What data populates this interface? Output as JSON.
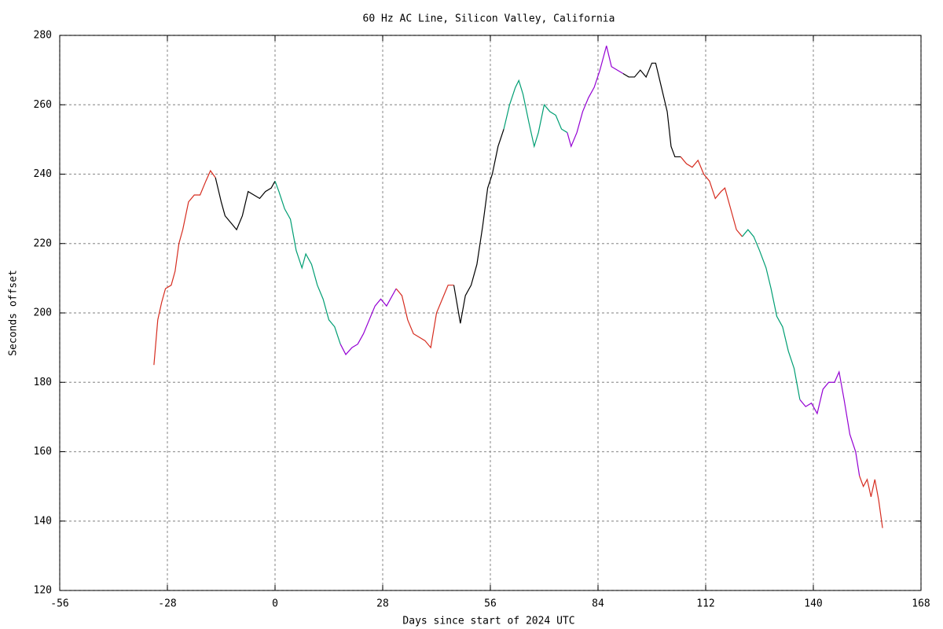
{
  "chart_data": {
    "type": "line",
    "title": "60 Hz AC Line, Silicon Valley, California",
    "xlabel": "Days since start of 2024 UTC",
    "ylabel": "Seconds offset",
    "xlim": [
      -56,
      168
    ],
    "xticks": [
      -56,
      -28,
      0,
      28,
      56,
      84,
      112,
      140,
      168
    ],
    "ylim": [
      120,
      280
    ],
    "yticks": [
      120,
      140,
      160,
      180,
      200,
      220,
      240,
      260,
      280
    ],
    "grid": true,
    "series": [
      {
        "color": "#d62d20",
        "x": [
          -31.5,
          -30.5,
          -29.5,
          -28.5,
          -27,
          -26,
          -25,
          -24,
          -22.5,
          -21,
          -19.5,
          -18,
          -16.8,
          -15.5
        ],
        "values": [
          185,
          198,
          203,
          207,
          208,
          212,
          220,
          224,
          232,
          234,
          234,
          238,
          241,
          239
        ]
      },
      {
        "color": "#000000",
        "x": [
          -15.5,
          -14,
          -13,
          -11.5,
          -10,
          -8.5,
          -7,
          -5.5,
          -4,
          -2.5,
          -1,
          0
        ],
        "values": [
          239,
          232,
          228,
          226,
          224,
          228,
          235,
          234,
          233,
          235,
          236,
          238
        ]
      },
      {
        "color": "#009e73",
        "x": [
          0,
          1,
          2.5,
          4,
          5.5,
          7,
          8,
          9.5,
          11,
          12.5,
          14,
          15.5,
          17
        ],
        "values": [
          238,
          235,
          230,
          227,
          218,
          213,
          217,
          214,
          208,
          204,
          198,
          196,
          191
        ]
      },
      {
        "color": "#9400d3",
        "x": [
          17,
          18.4,
          20,
          21.5,
          23,
          24.5,
          26,
          27.5,
          29,
          30,
          31.5
        ],
        "values": [
          191,
          188,
          190,
          191,
          194,
          198,
          202,
          204,
          202,
          204,
          207
        ]
      },
      {
        "color": "#d62d20",
        "x": [
          31.5,
          33,
          34.5,
          36,
          37.5,
          39,
          40.5,
          42,
          43.5,
          45,
          46.5
        ],
        "values": [
          207,
          205,
          198,
          194,
          193,
          192,
          190,
          200,
          204,
          208,
          208
        ]
      },
      {
        "color": "#000000",
        "x": [
          46.5,
          48.2,
          49.5,
          51,
          52.5,
          54,
          55.3,
          56.5,
          58,
          59.5
        ],
        "values": [
          208,
          197,
          205,
          208,
          214,
          225,
          236,
          240,
          248,
          253
        ]
      },
      {
        "color": "#009e73",
        "x": [
          59.5,
          61,
          62.5,
          63.4,
          64.5,
          66,
          67.4,
          68.5,
          70,
          71.5,
          73,
          74.5,
          76
        ],
        "values": [
          253,
          260,
          265,
          267,
          263,
          255,
          248,
          252,
          260,
          258,
          257,
          253,
          252
        ]
      },
      {
        "color": "#9400d3",
        "x": [
          76,
          77,
          78.5,
          80,
          81.5,
          83,
          84.5,
          86.2,
          87.5,
          89,
          90.5
        ],
        "values": [
          252,
          248,
          252,
          258,
          262,
          265,
          270,
          277,
          271,
          270,
          269
        ]
      },
      {
        "color": "#000000",
        "x": [
          90.5,
          92,
          93.5,
          95,
          96.5,
          98,
          99,
          100.5,
          102,
          103,
          104,
          105.5
        ],
        "values": [
          269,
          268,
          268,
          270,
          268,
          272,
          272,
          265,
          258,
          248,
          245,
          245
        ]
      },
      {
        "color": "#d62d20",
        "x": [
          105.5,
          107,
          108.5,
          110,
          111.5,
          113,
          114.5,
          116,
          117,
          118.5,
          120,
          121.5
        ],
        "values": [
          245,
          243,
          242,
          244,
          240,
          238,
          233,
          235,
          236,
          230,
          224,
          222
        ]
      },
      {
        "color": "#009e73",
        "x": [
          121.5,
          123,
          124.5,
          126,
          127.7,
          129,
          130.5,
          132,
          133.5,
          135,
          136.5
        ],
        "values": [
          222,
          224,
          222,
          218,
          213,
          207,
          199,
          196,
          189,
          184,
          175
        ]
      },
      {
        "color": "#9400d3",
        "x": [
          136.5,
          138,
          139.5,
          141,
          142.5,
          144,
          145.5,
          146.7,
          148,
          149.5,
          151,
          152
        ],
        "values": [
          175,
          173,
          174,
          171,
          178,
          180,
          180,
          183,
          175,
          165,
          160,
          153
        ]
      },
      {
        "color": "#d62d20",
        "x": [
          152,
          153,
          154,
          155,
          156,
          157,
          158
        ],
        "values": [
          153,
          150,
          152,
          147,
          152,
          146,
          138
        ]
      }
    ]
  }
}
